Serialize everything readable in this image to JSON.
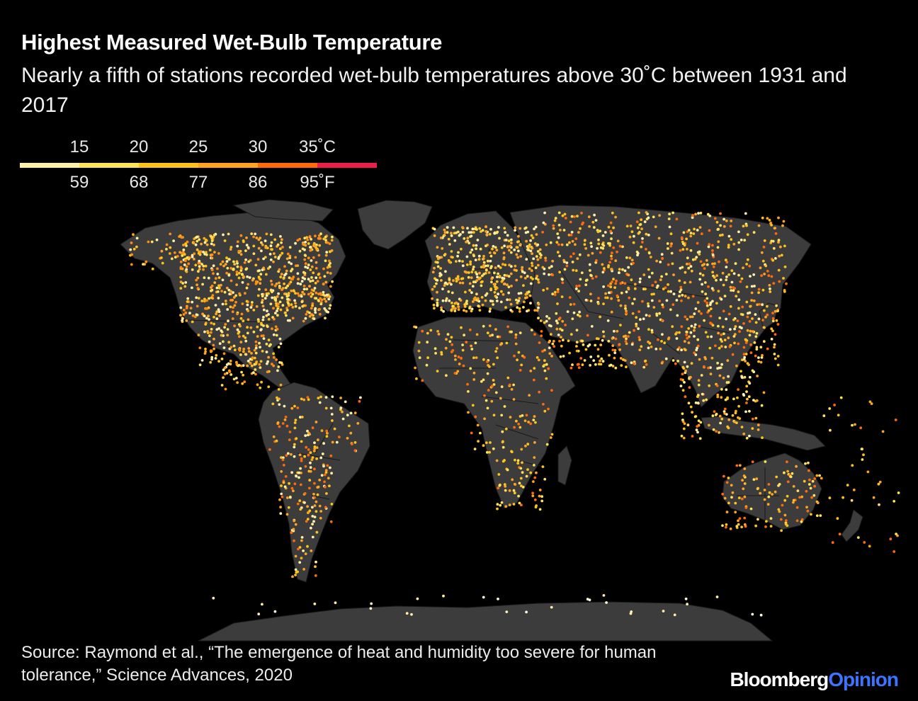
{
  "header": {
    "title": "Highest Measured Wet-Bulb Temperature",
    "subtitle": "Nearly a fifth of stations recorded wet-bulb temperatures above 30˚C between 1931 and 2017"
  },
  "legend": {
    "celsius_labels": [
      "15",
      "20",
      "25",
      "30",
      "35˚C"
    ],
    "fahrenheit_labels": [
      "59",
      "68",
      "77",
      "86",
      "95˚F"
    ],
    "color_bins": [
      {
        "color": "#ffefa8"
      },
      {
        "color": "#ffe15c"
      },
      {
        "color": "#ffc21a"
      },
      {
        "color": "#ffa420"
      },
      {
        "color": "#ff6a0a"
      },
      {
        "color": "#ee1e4b"
      }
    ]
  },
  "map": {
    "land_color": "#3c3c3c",
    "border_color": "#1a1a1a",
    "background": "#000000",
    "regions": [
      {
        "name": "north-america",
        "palette": [
          "#ffe15c",
          "#ffc21a",
          "#ffa420",
          "#ff8c10",
          "#ffefa8"
        ],
        "density": "high"
      },
      {
        "name": "south-america",
        "palette": [
          "#ffa420",
          "#ff6a0a",
          "#ffc21a",
          "#ffefa8"
        ],
        "density": "medium"
      },
      {
        "name": "europe",
        "palette": [
          "#ffe15c",
          "#ffc21a",
          "#ffa420",
          "#ffefa8"
        ],
        "density": "high"
      },
      {
        "name": "africa",
        "palette": [
          "#ff6a0a",
          "#ffa420",
          "#ffe15c",
          "#ffc21a"
        ],
        "density": "low"
      },
      {
        "name": "asia",
        "palette": [
          "#ffc21a",
          "#ffe15c",
          "#ffa420",
          "#ff6a0a",
          "#ffefa8"
        ],
        "density": "high"
      },
      {
        "name": "oceania",
        "palette": [
          "#ffa420",
          "#ff6a0a",
          "#ffc21a",
          "#ffe15c"
        ],
        "density": "medium"
      },
      {
        "name": "antarctica",
        "palette": [
          "#fff8dc",
          "#ffefa8"
        ],
        "density": "sparse"
      }
    ]
  },
  "footer": {
    "source": "Source: Raymond et al., “The emergence of heat and humidity too severe for human tolerance,” Science Advances, 2020",
    "brand_part1": "Bloomberg",
    "brand_part2": "Opinion"
  }
}
